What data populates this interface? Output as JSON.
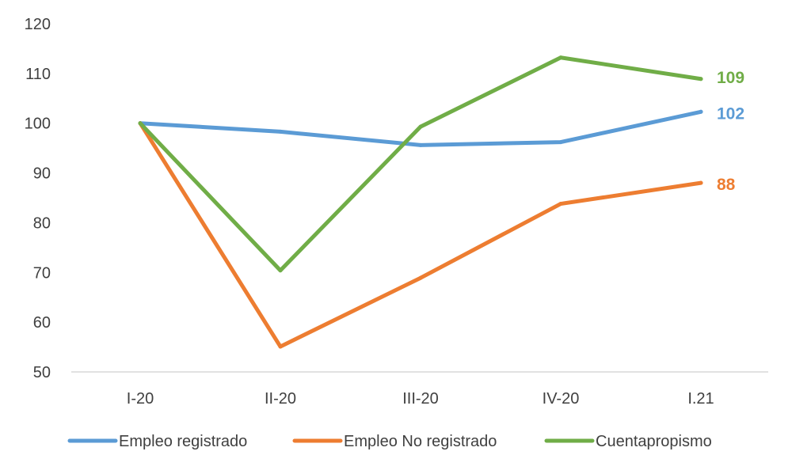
{
  "chart_data": {
    "type": "line",
    "title": "",
    "xlabel": "",
    "ylabel": "",
    "categories": [
      "I-20",
      "II-20",
      "III-20",
      "IV-20",
      "I.21"
    ],
    "ylim": [
      50,
      120
    ],
    "yticks": [
      "50",
      "60",
      "70",
      "80",
      "90",
      "100",
      "110",
      "120"
    ],
    "grid": false,
    "legend_position": "bottom",
    "series": [
      {
        "name": "Empleo registrado",
        "color": "#5b9bd5",
        "values": [
          100,
          98.3,
          95.6,
          96.2,
          102.3
        ],
        "end_label": "102"
      },
      {
        "name": "Empleo No registrado",
        "color": "#ed7d31",
        "values": [
          100,
          55.1,
          68.9,
          83.8,
          88
        ],
        "end_label": "88"
      },
      {
        "name": "Cuentapropismo",
        "color": "#70ad47",
        "values": [
          100,
          70.4,
          99.3,
          113.2,
          108.9
        ],
        "end_label": "109"
      }
    ]
  }
}
